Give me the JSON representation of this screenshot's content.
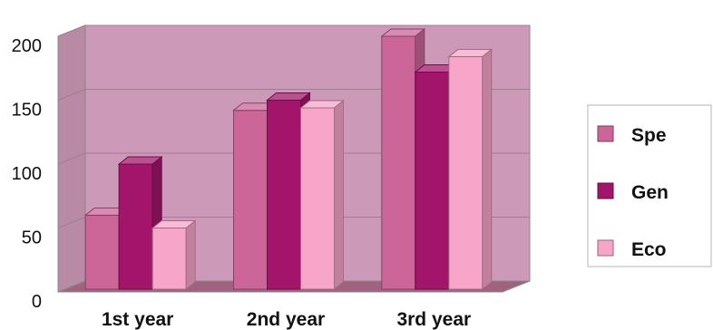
{
  "chart_data": {
    "type": "bar",
    "title": "",
    "xlabel": "",
    "ylabel": "",
    "categories": [
      "1st year",
      "2nd year",
      "3rd year"
    ],
    "series": [
      {
        "name": "Spe",
        "values": [
          60,
          142,
          200
        ],
        "color": "#cc6699"
      },
      {
        "name": "Gen",
        "values": [
          100,
          150,
          172
        ],
        "color": "#a3156b"
      },
      {
        "name": "Eco",
        "values": [
          50,
          144,
          184
        ],
        "color": "#f7a6c9"
      }
    ],
    "y_ticks": [
      "0",
      "50",
      "100",
      "150",
      "200"
    ],
    "ylim": [
      0,
      200
    ],
    "grid": true,
    "legend_position": "right",
    "wall_color": "#cc99b8",
    "floor_color": "#a0627f"
  }
}
